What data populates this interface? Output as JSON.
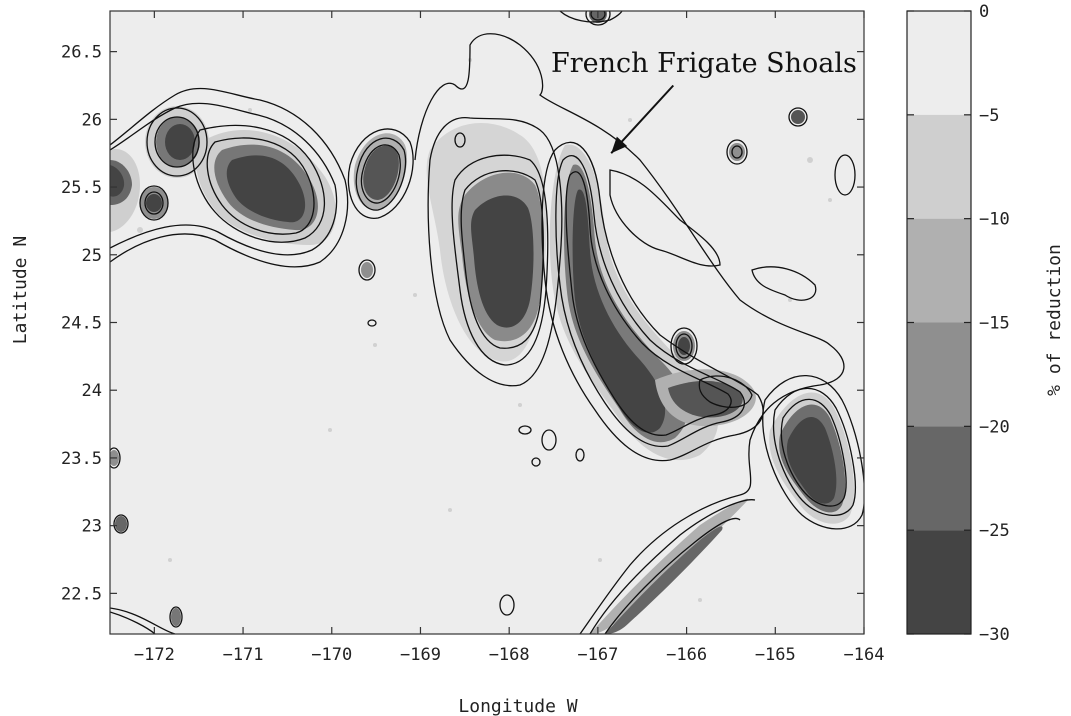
{
  "chart_data": {
    "type": "heatmap",
    "title": "",
    "xlabel": "Longitude W",
    "ylabel": "Latitude N",
    "xlim": [
      -172.5,
      -164
    ],
    "ylim": [
      22.2,
      26.8
    ],
    "x_ticks": [
      -172,
      -171,
      -170,
      -169,
      -168,
      -167,
      -166,
      -165,
      -164
    ],
    "x_tick_labels": [
      "−172",
      "−171",
      "−170",
      "−169",
      "−168",
      "−167",
      "−166",
      "−165",
      "−164"
    ],
    "y_ticks": [
      22.5,
      23,
      23.5,
      24,
      24.5,
      25,
      25.5,
      26,
      26.5
    ],
    "y_tick_labels": [
      "22.5",
      "23",
      "23.5",
      "24",
      "24.5",
      "25",
      "25.5",
      "26",
      "26.5"
    ],
    "colorbar": {
      "label": "% of reduction",
      "range": [
        -30,
        0
      ],
      "levels": [
        0,
        -5,
        -10,
        -15,
        -20,
        -25,
        -30
      ],
      "level_labels": [
        "0",
        "−5",
        "−10",
        "−15",
        "−20",
        "−25",
        "−30"
      ],
      "bands": [
        {
          "from": 0,
          "to": -5,
          "color": "#ededed"
        },
        {
          "from": -5,
          "to": -10,
          "color": "#cfcfcf"
        },
        {
          "from": -10,
          "to": -15,
          "color": "#b0b0b0"
        },
        {
          "from": -15,
          "to": -20,
          "color": "#8f8f8f"
        },
        {
          "from": -20,
          "to": -25,
          "color": "#676767"
        },
        {
          "from": -25,
          "to": -30,
          "color": "#444444"
        }
      ]
    },
    "regions": [
      {
        "lon": -172.1,
        "lat": 25.6,
        "rlon": 0.35,
        "rlat": 0.3,
        "level": -25
      },
      {
        "lon": -171.7,
        "lat": 25.95,
        "rlon": 0.35,
        "rlat": 0.3,
        "level": -25
      },
      {
        "lon": -170.9,
        "lat": 25.5,
        "rlon": 0.65,
        "rlat": 0.4,
        "level": -25
      },
      {
        "lon": -169.4,
        "lat": 25.6,
        "rlon": 0.3,
        "rlat": 0.35,
        "level": -25
      },
      {
        "lon": -167.85,
        "lat": 25.0,
        "rlon": 0.45,
        "rlat": 0.7,
        "level": -25
      },
      {
        "lon": -166.9,
        "lat": 24.5,
        "rlon": 0.35,
        "rlat": 0.6,
        "level": -25
      },
      {
        "lon": -166.1,
        "lat": 23.85,
        "rlon": 0.45,
        "rlat": 0.3,
        "level": -25
      },
      {
        "lon": -165.4,
        "lat": 24.0,
        "rlon": 0.25,
        "rlat": 0.15,
        "level": -20
      },
      {
        "lon": -164.55,
        "lat": 23.5,
        "rlon": 0.4,
        "rlat": 0.45,
        "level": -25
      },
      {
        "lon": -166.5,
        "lat": 23.0,
        "rlon": 0.9,
        "rlat": 0.12,
        "level": -10
      }
    ],
    "annotation": {
      "text": "French Frigate Shoals",
      "arrow_to": {
        "lon": -166.85,
        "lat": 25.75
      },
      "arrow_from": {
        "lon": -166.15,
        "lat": 26.25
      }
    }
  },
  "colors": {
    "background": "#ededed",
    "contour": "#111111",
    "frame": "#333333"
  }
}
